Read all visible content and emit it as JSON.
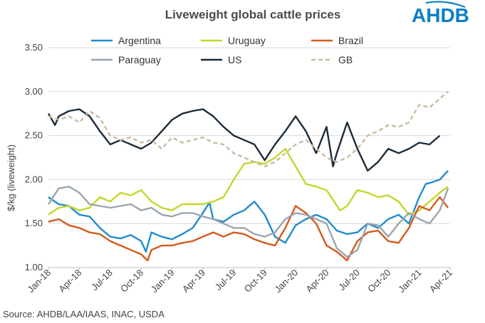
{
  "brand": {
    "logo_text": "AHDB",
    "logo_color": "#0a7fc2"
  },
  "source": "Source: AHDB/LAA/IAAS, INAC, USDA",
  "chart_data": {
    "type": "line",
    "title": "Liveweight global cattle prices",
    "xlabel": "",
    "ylabel": "$/kg (liveweight)",
    "ylim": [
      1.0,
      3.5
    ],
    "yticks": [
      "1.00",
      "1.50",
      "2.00",
      "2.50",
      "3.00",
      "3.50"
    ],
    "xlim": [
      "2018-01",
      "2021-04"
    ],
    "xticks": [
      "Jan-18",
      "Apr-18",
      "Jul-18",
      "Oct-18",
      "Jan-19",
      "Apr-19",
      "Jul-19",
      "Oct-19",
      "Jan-20",
      "Apr-20",
      "Jul-20",
      "Oct-20",
      "Jan-21",
      "Apr-21"
    ],
    "grid": "horizontal",
    "legend": "top",
    "series": [
      {
        "name": "Argentina",
        "color": "#1f8ccf",
        "dash": false,
        "points": [
          [
            "2018-01",
            1.8
          ],
          [
            "2018-02",
            1.72
          ],
          [
            "2018-03",
            1.7
          ],
          [
            "2018-04",
            1.6
          ],
          [
            "2018-05",
            1.58
          ],
          [
            "2018-06",
            1.45
          ],
          [
            "2018-07",
            1.35
          ],
          [
            "2018-08",
            1.33
          ],
          [
            "2018-09",
            1.37
          ],
          [
            "2018-10",
            1.3
          ],
          [
            "2018-10-15",
            1.18
          ],
          [
            "2018-11",
            1.4
          ],
          [
            "2018-12",
            1.35
          ],
          [
            "2019-01",
            1.32
          ],
          [
            "2019-02",
            1.38
          ],
          [
            "2019-03",
            1.45
          ],
          [
            "2019-04",
            1.62
          ],
          [
            "2019-04-20",
            1.74
          ],
          [
            "2019-05",
            1.55
          ],
          [
            "2019-06",
            1.52
          ],
          [
            "2019-07",
            1.6
          ],
          [
            "2019-08",
            1.65
          ],
          [
            "2019-09",
            1.75
          ],
          [
            "2019-10",
            1.6
          ],
          [
            "2019-11",
            1.35
          ],
          [
            "2019-12",
            1.28
          ],
          [
            "2020-01",
            1.48
          ],
          [
            "2020-02",
            1.55
          ],
          [
            "2020-03",
            1.6
          ],
          [
            "2020-04",
            1.55
          ],
          [
            "2020-05",
            1.42
          ],
          [
            "2020-06",
            1.38
          ],
          [
            "2020-07",
            1.4
          ],
          [
            "2020-08",
            1.5
          ],
          [
            "2020-09",
            1.45
          ],
          [
            "2020-10",
            1.55
          ],
          [
            "2020-11",
            1.6
          ],
          [
            "2020-12",
            1.5
          ],
          [
            "2021-01",
            1.8
          ],
          [
            "2021-01-20",
            1.95
          ],
          [
            "2021-02",
            1.96
          ],
          [
            "2021-03",
            2.0
          ],
          [
            "2021-03-25",
            2.1
          ]
        ]
      },
      {
        "name": "Uruguay",
        "color": "#c5d62c",
        "dash": false,
        "points": [
          [
            "2018-01",
            1.6
          ],
          [
            "2018-02",
            1.68
          ],
          [
            "2018-03",
            1.7
          ],
          [
            "2018-04",
            1.65
          ],
          [
            "2018-05",
            1.68
          ],
          [
            "2018-06",
            1.8
          ],
          [
            "2018-07",
            1.75
          ],
          [
            "2018-08",
            1.85
          ],
          [
            "2018-09",
            1.82
          ],
          [
            "2018-10",
            1.88
          ],
          [
            "2018-11",
            1.75
          ],
          [
            "2018-12",
            1.68
          ],
          [
            "2019-01",
            1.65
          ],
          [
            "2019-02",
            1.72
          ],
          [
            "2019-03",
            1.72
          ],
          [
            "2019-04",
            1.72
          ],
          [
            "2019-05",
            1.75
          ],
          [
            "2019-06",
            1.8
          ],
          [
            "2019-07",
            2.0
          ],
          [
            "2019-08",
            2.18
          ],
          [
            "2019-09",
            2.2
          ],
          [
            "2019-10",
            2.18
          ],
          [
            "2019-11",
            2.25
          ],
          [
            "2019-12",
            2.35
          ],
          [
            "2020-01",
            2.15
          ],
          [
            "2020-02",
            1.95
          ],
          [
            "2020-03",
            1.92
          ],
          [
            "2020-04",
            1.88
          ],
          [
            "2020-05-10",
            1.65
          ],
          [
            "2020-06",
            1.7
          ],
          [
            "2020-07",
            1.88
          ],
          [
            "2020-08",
            1.85
          ],
          [
            "2020-09",
            1.8
          ],
          [
            "2020-10",
            1.82
          ],
          [
            "2020-11",
            1.75
          ],
          [
            "2020-12",
            1.6
          ],
          [
            "2021-01",
            1.65
          ],
          [
            "2021-02",
            1.75
          ],
          [
            "2021-03",
            1.85
          ],
          [
            "2021-03-25",
            1.92
          ]
        ]
      },
      {
        "name": "Brazil",
        "color": "#d35a1c",
        "dash": false,
        "points": [
          [
            "2018-01",
            1.52
          ],
          [
            "2018-02",
            1.55
          ],
          [
            "2018-03",
            1.48
          ],
          [
            "2018-04",
            1.45
          ],
          [
            "2018-05",
            1.4
          ],
          [
            "2018-06",
            1.38
          ],
          [
            "2018-07",
            1.3
          ],
          [
            "2018-08",
            1.25
          ],
          [
            "2018-09",
            1.2
          ],
          [
            "2018-10",
            1.15
          ],
          [
            "2018-10-20",
            1.08
          ],
          [
            "2018-11",
            1.2
          ],
          [
            "2018-12",
            1.25
          ],
          [
            "2019-01",
            1.25
          ],
          [
            "2019-02",
            1.28
          ],
          [
            "2019-03",
            1.3
          ],
          [
            "2019-04",
            1.35
          ],
          [
            "2019-05",
            1.4
          ],
          [
            "2019-06",
            1.35
          ],
          [
            "2019-07",
            1.4
          ],
          [
            "2019-08",
            1.38
          ],
          [
            "2019-09",
            1.32
          ],
          [
            "2019-10",
            1.28
          ],
          [
            "2019-11",
            1.25
          ],
          [
            "2019-12",
            1.45
          ],
          [
            "2020-01",
            1.7
          ],
          [
            "2020-02",
            1.62
          ],
          [
            "2020-03",
            1.5
          ],
          [
            "2020-04",
            1.25
          ],
          [
            "2020-05",
            1.18
          ],
          [
            "2020-06",
            1.08
          ],
          [
            "2020-07",
            1.3
          ],
          [
            "2020-08",
            1.4
          ],
          [
            "2020-09",
            1.42
          ],
          [
            "2020-10",
            1.3
          ],
          [
            "2020-11",
            1.28
          ],
          [
            "2020-12",
            1.45
          ],
          [
            "2021-01",
            1.7
          ],
          [
            "2021-02",
            1.65
          ],
          [
            "2021-03",
            1.8
          ],
          [
            "2021-03-25",
            1.68
          ]
        ]
      },
      {
        "name": "Paraguay",
        "color": "#9ba5ae",
        "dash": false,
        "points": [
          [
            "2018-01",
            1.72
          ],
          [
            "2018-02",
            1.9
          ],
          [
            "2018-03",
            1.92
          ],
          [
            "2018-04",
            1.85
          ],
          [
            "2018-05",
            1.72
          ],
          [
            "2018-06",
            1.7
          ],
          [
            "2018-07",
            1.68
          ],
          [
            "2018-08",
            1.7
          ],
          [
            "2018-09",
            1.72
          ],
          [
            "2018-10",
            1.65
          ],
          [
            "2018-11",
            1.68
          ],
          [
            "2018-12",
            1.6
          ],
          [
            "2019-01",
            1.58
          ],
          [
            "2019-02",
            1.62
          ],
          [
            "2019-03",
            1.62
          ],
          [
            "2019-04",
            1.58
          ],
          [
            "2019-05",
            1.55
          ],
          [
            "2019-06",
            1.5
          ],
          [
            "2019-07",
            1.45
          ],
          [
            "2019-08",
            1.45
          ],
          [
            "2019-09",
            1.38
          ],
          [
            "2019-10",
            1.35
          ],
          [
            "2019-11",
            1.4
          ],
          [
            "2019-12",
            1.55
          ],
          [
            "2020-01",
            1.62
          ],
          [
            "2020-02",
            1.6
          ],
          [
            "2020-03",
            1.55
          ],
          [
            "2020-04",
            1.5
          ],
          [
            "2020-05",
            1.22
          ],
          [
            "2020-06",
            1.12
          ],
          [
            "2020-07",
            1.2
          ],
          [
            "2020-08",
            1.5
          ],
          [
            "2020-09",
            1.48
          ],
          [
            "2020-10",
            1.35
          ],
          [
            "2020-11",
            1.5
          ],
          [
            "2020-12",
            1.62
          ],
          [
            "2021-01",
            1.55
          ],
          [
            "2021-02",
            1.5
          ],
          [
            "2021-03",
            1.65
          ],
          [
            "2021-03-25",
            1.9
          ]
        ]
      },
      {
        "name": "US",
        "color": "#1c2b39",
        "dash": false,
        "points": [
          [
            "2018-01",
            2.75
          ],
          [
            "2018-01-20",
            2.62
          ],
          [
            "2018-02",
            2.72
          ],
          [
            "2018-03",
            2.78
          ],
          [
            "2018-04",
            2.8
          ],
          [
            "2018-05",
            2.72
          ],
          [
            "2018-06",
            2.55
          ],
          [
            "2018-07",
            2.4
          ],
          [
            "2018-08",
            2.45
          ],
          [
            "2018-09",
            2.4
          ],
          [
            "2018-10",
            2.35
          ],
          [
            "2018-11",
            2.42
          ],
          [
            "2018-12",
            2.55
          ],
          [
            "2019-01",
            2.68
          ],
          [
            "2019-02",
            2.75
          ],
          [
            "2019-03",
            2.78
          ],
          [
            "2019-04",
            2.8
          ],
          [
            "2019-05",
            2.72
          ],
          [
            "2019-06",
            2.6
          ],
          [
            "2019-07",
            2.5
          ],
          [
            "2019-08",
            2.45
          ],
          [
            "2019-09",
            2.4
          ],
          [
            "2019-10",
            2.22
          ],
          [
            "2019-11",
            2.4
          ],
          [
            "2019-12",
            2.55
          ],
          [
            "2020-01",
            2.72
          ],
          [
            "2020-02",
            2.55
          ],
          [
            "2020-03",
            2.3
          ],
          [
            "2020-04",
            2.6
          ],
          [
            "2020-04-20",
            2.15
          ],
          [
            "2020-05",
            2.3
          ],
          [
            "2020-06",
            2.65
          ],
          [
            "2020-07",
            2.35
          ],
          [
            "2020-08",
            2.1
          ],
          [
            "2020-09",
            2.2
          ],
          [
            "2020-10",
            2.35
          ],
          [
            "2020-11",
            2.3
          ],
          [
            "2020-12",
            2.35
          ],
          [
            "2021-01",
            2.42
          ],
          [
            "2021-02",
            2.4
          ],
          [
            "2021-03",
            2.5
          ]
        ]
      },
      {
        "name": "GB",
        "color": "#c7bba2",
        "dash": true,
        "points": [
          [
            "2018-01",
            2.72
          ],
          [
            "2018-02",
            2.68
          ],
          [
            "2018-03",
            2.72
          ],
          [
            "2018-04",
            2.65
          ],
          [
            "2018-05",
            2.78
          ],
          [
            "2018-06",
            2.7
          ],
          [
            "2018-07",
            2.5
          ],
          [
            "2018-08",
            2.45
          ],
          [
            "2018-09",
            2.48
          ],
          [
            "2018-10",
            2.42
          ],
          [
            "2018-11",
            2.45
          ],
          [
            "2018-12",
            2.35
          ],
          [
            "2019-01",
            2.48
          ],
          [
            "2019-02",
            2.42
          ],
          [
            "2019-03",
            2.45
          ],
          [
            "2019-04",
            2.48
          ],
          [
            "2019-05",
            2.42
          ],
          [
            "2019-06",
            2.4
          ],
          [
            "2019-07",
            2.3
          ],
          [
            "2019-08",
            2.25
          ],
          [
            "2019-09",
            2.2
          ],
          [
            "2019-10",
            2.15
          ],
          [
            "2019-11",
            2.2
          ],
          [
            "2019-12",
            2.3
          ],
          [
            "2020-01",
            2.4
          ],
          [
            "2020-02",
            2.45
          ],
          [
            "2020-03",
            2.35
          ],
          [
            "2020-04",
            2.25
          ],
          [
            "2020-05",
            2.2
          ],
          [
            "2020-06",
            2.25
          ],
          [
            "2020-07",
            2.35
          ],
          [
            "2020-08",
            2.5
          ],
          [
            "2020-09",
            2.55
          ],
          [
            "2020-10",
            2.62
          ],
          [
            "2020-11",
            2.6
          ],
          [
            "2020-12",
            2.65
          ],
          [
            "2021-01",
            2.85
          ],
          [
            "2021-02",
            2.82
          ],
          [
            "2021-03",
            2.92
          ],
          [
            "2021-03-25",
            3.0
          ]
        ]
      }
    ]
  }
}
